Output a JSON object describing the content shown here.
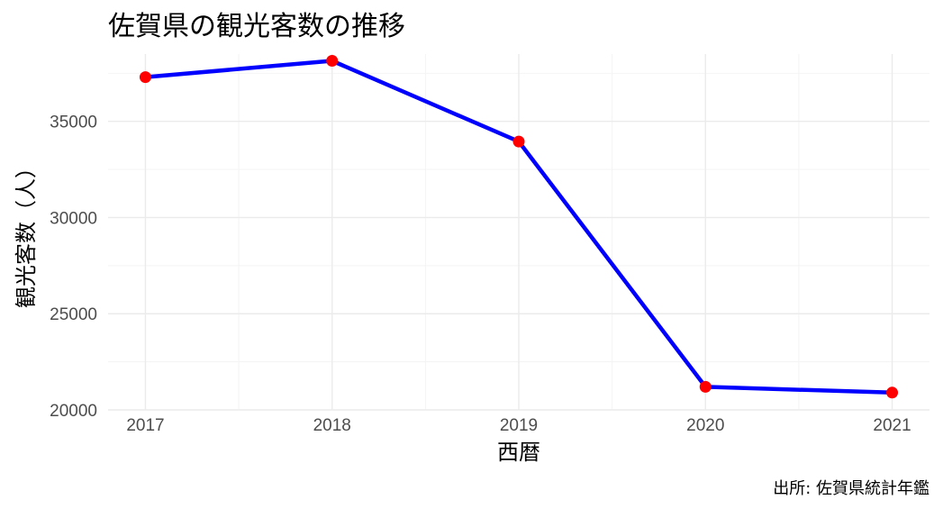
{
  "chart_data": {
    "type": "line",
    "title": "佐賀県の観光客数の推移",
    "xlabel": "西暦",
    "ylabel": "観光客数（人）",
    "caption": "出所: 佐賀県統計年鑑",
    "x": [
      2017,
      2018,
      2019,
      2020,
      2021
    ],
    "x_tick_labels": [
      "2017",
      "2018",
      "2019",
      "2020",
      "2021"
    ],
    "series": [
      {
        "values": [
          37300,
          38150,
          33950,
          21200,
          20900
        ],
        "line_color": "#0000ff",
        "point_color": "#ff0000"
      }
    ],
    "y_ticks": [
      20000,
      25000,
      30000,
      35000
    ],
    "y_tick_labels": [
      "20000",
      "25000",
      "30000",
      "35000"
    ],
    "xlim": [
      2016.8,
      2021.2
    ],
    "ylim": [
      20000,
      38500
    ],
    "grid": true,
    "legend": "none"
  }
}
